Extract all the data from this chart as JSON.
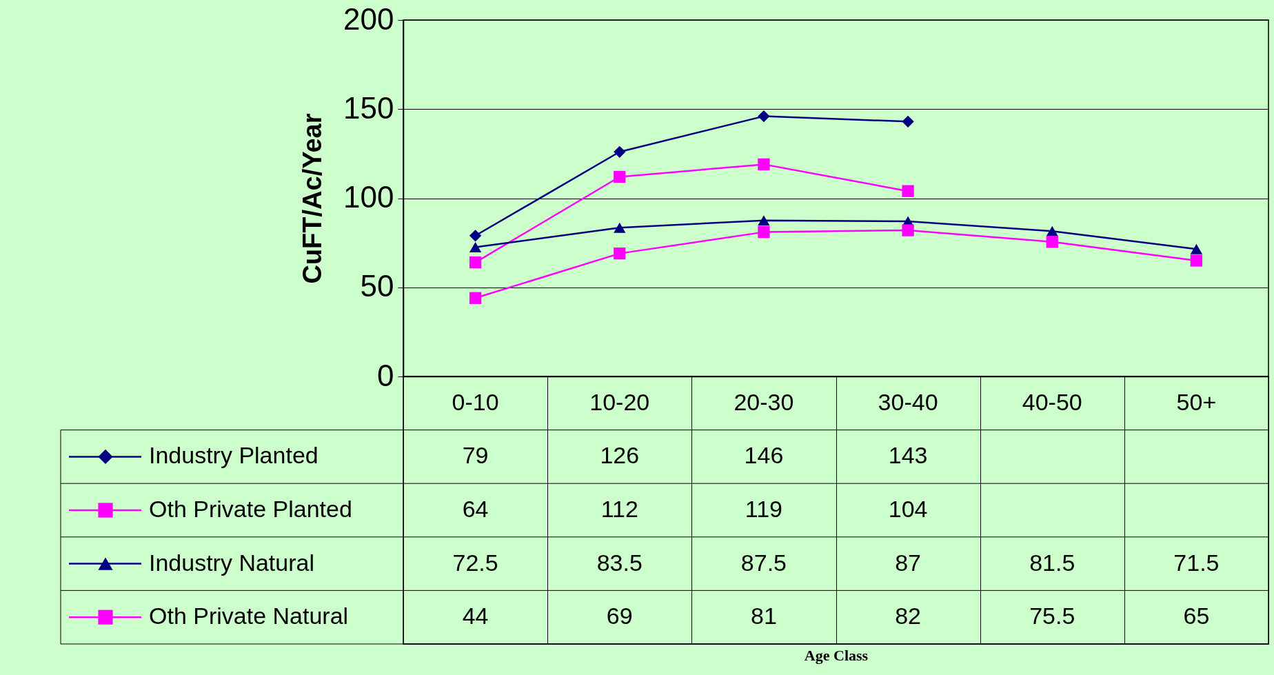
{
  "chart_data": {
    "type": "line",
    "annotations": [
      "Age Class"
    ],
    "ylabel": "CuFT/Ac/Year",
    "categories": [
      "0-10",
      "10-20",
      "20-30",
      "30-40",
      "40-50",
      "50+"
    ],
    "series": [
      {
        "name": "Industry Planted",
        "color": "#000080",
        "marker": "diamond",
        "values": [
          79,
          126,
          146,
          143,
          null,
          null
        ]
      },
      {
        "name": "Oth Private Planted",
        "color": "#ff00ff",
        "marker": "square",
        "values": [
          64,
          112,
          119,
          104,
          null,
          null
        ]
      },
      {
        "name": "Industry Natural",
        "color": "#000080",
        "marker": "triangle",
        "values": [
          72.5,
          83.5,
          87.5,
          87,
          81.5,
          71.5
        ]
      },
      {
        "name": "Oth Private Natural",
        "color": "#ff00ff",
        "marker": "square",
        "values": [
          44,
          69,
          81,
          82,
          75.5,
          65
        ]
      }
    ],
    "ylim": [
      0,
      200
    ],
    "yticks": [
      0,
      50,
      100,
      150,
      200
    ],
    "grid": "y",
    "legend": "bottom",
    "data_labels": true
  }
}
